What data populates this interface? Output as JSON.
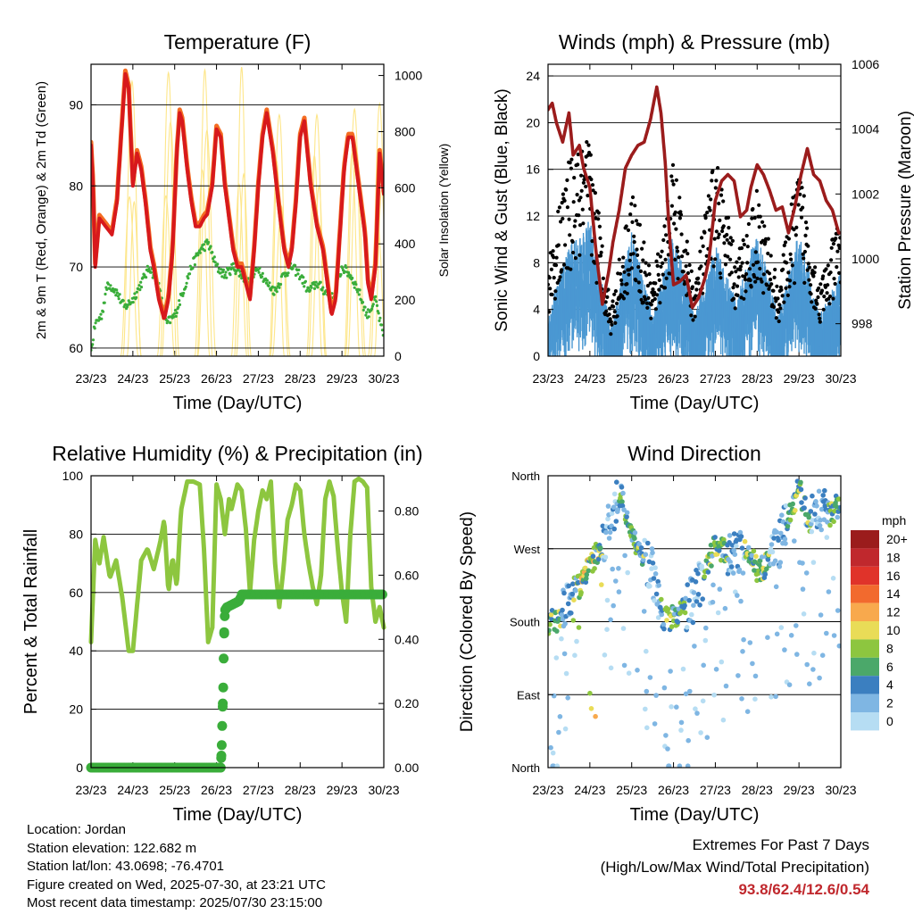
{
  "colors": {
    "temp2m": "#d7191c",
    "temp9m": "#f46d22",
    "dewpoint": "#3aad3a",
    "solar": "#fde68a",
    "wind": "#4a98d2",
    "gust": "#000000",
    "pressure": "#9b1c1c",
    "rh": "#8dc63f",
    "precip": "#3aad3a",
    "extremes": "#c0282d"
  },
  "chart_data": [
    {
      "type": "line",
      "title": "Temperature (F)",
      "xlabel": "Time (Day/UTC)",
      "ylabel": "2m & 9m T (Red, Orange) & 2m Td (Green)",
      "ylabel_right": "Solar Insolation (Yellow)",
      "x_ticks": [
        "23/23",
        "24/23",
        "25/23",
        "26/23",
        "27/23",
        "28/23",
        "29/23",
        "30/23"
      ],
      "y_ticks": [
        "60",
        "70",
        "80",
        "90"
      ],
      "y_ticks_right": [
        "0",
        "200",
        "400",
        "600",
        "800",
        "1000"
      ],
      "ylim": [
        59,
        95
      ],
      "ylim_right": [
        0,
        1040
      ],
      "series": [
        {
          "role": "temperature",
          "x": [
            0,
            0.05,
            0.1,
            0.2,
            0.35,
            0.5,
            0.62,
            0.72,
            0.82,
            0.9,
            1.0,
            1.1,
            1.2,
            1.3,
            1.42,
            1.5,
            1.62,
            1.75,
            1.85,
            1.95,
            2.05,
            2.12,
            2.18,
            2.3,
            2.4,
            2.5,
            2.6,
            2.7,
            2.78,
            2.9,
            3.0,
            3.1,
            3.2,
            3.3,
            3.4,
            3.5,
            3.6,
            3.7,
            3.8,
            3.9,
            4.0,
            4.1,
            4.2,
            4.35,
            4.5,
            4.62,
            4.72,
            4.8,
            4.9,
            5.0,
            5.1,
            5.25,
            5.4,
            5.55,
            5.65,
            5.75,
            5.85,
            5.95,
            6.05,
            6.15,
            6.25,
            6.4,
            6.55,
            6.62,
            6.7,
            6.8,
            6.9,
            7.0
          ],
          "y": [
            85,
            80,
            70,
            76,
            75,
            74,
            78,
            86,
            93.8,
            92,
            80,
            84,
            82,
            78,
            72,
            70,
            66,
            63.5,
            66,
            72,
            84,
            89,
            88,
            82,
            78,
            75,
            75,
            76,
            76.5,
            80,
            87,
            86,
            80,
            76,
            72,
            70,
            70,
            68,
            66,
            72,
            80,
            86,
            89,
            84,
            77,
            72,
            70,
            72,
            78,
            86,
            88,
            80,
            75,
            72,
            68,
            64,
            66,
            74,
            82,
            86,
            86,
            80,
            74,
            68,
            66,
            70,
            84,
            79
          ]
        },
        {
          "role": "dewpoint",
          "x": [
            0,
            0.1,
            0.25,
            0.4,
            0.6,
            0.8,
            1.0,
            1.2,
            1.4,
            1.6,
            1.8,
            2.0,
            2.2,
            2.4,
            2.6,
            2.8,
            3.0,
            3.2,
            3.4,
            3.6,
            3.8,
            4.0,
            4.2,
            4.4,
            4.6,
            4.8,
            5.0,
            5.2,
            5.4,
            5.6,
            5.8,
            6.0,
            6.2,
            6.4,
            6.6,
            6.8,
            7.0
          ],
          "y": [
            59.5,
            63,
            64,
            68,
            67,
            65,
            66,
            68,
            70,
            68,
            63,
            64,
            67,
            70,
            72,
            73,
            70,
            69,
            70,
            69,
            68,
            70,
            68,
            67,
            69,
            70,
            69,
            67,
            68,
            67,
            66,
            70,
            69,
            67,
            64,
            66,
            61
          ]
        },
        {
          "role": "solar_insolation_peaks",
          "x": [
            0.98,
            1.85,
            2.72,
            3.6,
            4.5,
            5.4,
            6.3,
            6.9
          ],
          "y": [
            980,
            1010,
            1020,
            1030,
            860,
            860,
            880,
            900
          ]
        }
      ],
      "legend": "none"
    },
    {
      "type": "scatter",
      "title": "Winds (mph) & Pressure (mb)",
      "xlabel": "Time (Day/UTC)",
      "ylabel": "Sonic Wind & Gust (Blue, Black)",
      "ylabel_right": "Station Pressure (Maroon)",
      "x_ticks": [
        "23/23",
        "24/23",
        "25/23",
        "26/23",
        "27/23",
        "28/23",
        "29/23",
        "30/23"
      ],
      "y_ticks": [
        "0",
        "4",
        "8",
        "12",
        "16",
        "20",
        "24"
      ],
      "y_ticks_right": [
        "998",
        "1000",
        "1002",
        "1004",
        "1006"
      ],
      "ylim": [
        0,
        25
      ],
      "ylim_right": [
        997,
        1006
      ],
      "series": [
        {
          "role": "pressure",
          "x": [
            0,
            0.1,
            0.2,
            0.35,
            0.5,
            0.6,
            0.75,
            0.85,
            1.0,
            1.15,
            1.3,
            1.45,
            1.55,
            1.7,
            1.85,
            2.0,
            2.15,
            2.3,
            2.45,
            2.6,
            2.7,
            2.8,
            2.9,
            3.0,
            3.15,
            3.3,
            3.45,
            3.6,
            3.75,
            3.85,
            4.0,
            4.15,
            4.3,
            4.45,
            4.6,
            4.75,
            4.85,
            5.0,
            5.15,
            5.3,
            5.45,
            5.6,
            5.75,
            5.9,
            6.05,
            6.2,
            6.35,
            6.5,
            6.65,
            6.8,
            6.95,
            7.0
          ],
          "y": [
            1004.6,
            1004.8,
            1004.2,
            1003.6,
            1004.5,
            1003.2,
            1003.5,
            1002.8,
            1002.2,
            1000.2,
            998.6,
            999.6,
            1000.5,
            1001.5,
            1002.8,
            1003.2,
            1003.5,
            1003.6,
            1004.3,
            1005.3,
            1004.5,
            1003.0,
            1000.8,
            999.2,
            999.3,
            999.5,
            998.5,
            998.8,
            999.4,
            1000.0,
            1001.8,
            1002.4,
            1002.6,
            1002.4,
            1001.3,
            1001.5,
            1002.2,
            1002.9,
            1002.6,
            1002.1,
            1001.5,
            1001.6,
            1000.8,
            1001.6,
            1002.6,
            1003.4,
            1002.6,
            1002.4,
            1001.8,
            1001.5,
            1000.8,
            1000.8
          ]
        },
        {
          "role": "wind_envelope",
          "x": [
            0,
            0.5,
            1.0,
            1.5,
            2.0,
            2.5,
            3.0,
            3.5,
            4.0,
            4.5,
            5.0,
            5.5,
            6.0,
            6.5,
            7.0
          ],
          "y": [
            3,
            8,
            10,
            2,
            9,
            3,
            9,
            3,
            8,
            4,
            9,
            3,
            9,
            3,
            6
          ]
        },
        {
          "role": "gust_envelope",
          "x": [
            0,
            0.5,
            1.0,
            1.5,
            2.0,
            2.5,
            3.0,
            3.5,
            4.0,
            4.5,
            5.0,
            5.5,
            6.0,
            6.5,
            7.0
          ],
          "y": [
            8,
            16,
            18,
            4,
            14,
            6,
            16,
            6,
            17,
            8,
            14,
            6,
            16,
            6,
            12
          ]
        }
      ],
      "legend": "none"
    },
    {
      "type": "line",
      "title": "Relative Humidity (%) & Precipitation (in)",
      "xlabel": "Time (Day/UTC)",
      "ylabel": "Percent & Total Rainfall",
      "x_ticks": [
        "23/23",
        "24/23",
        "25/23",
        "26/23",
        "27/23",
        "28/23",
        "29/23",
        "30/23"
      ],
      "y_ticks": [
        "0",
        "20",
        "40",
        "60",
        "80",
        "100"
      ],
      "y_ticks_right": [
        "0.00",
        "0.20",
        "0.40",
        "0.60",
        "0.80"
      ],
      "ylim": [
        0,
        100
      ],
      "ylim_right": [
        0,
        0.91
      ],
      "series": [
        {
          "role": "relative_humidity",
          "x": [
            0,
            0.1,
            0.2,
            0.3,
            0.45,
            0.6,
            0.75,
            0.9,
            1.0,
            1.2,
            1.35,
            1.5,
            1.65,
            1.75,
            1.85,
            1.95,
            2.05,
            2.15,
            2.3,
            2.45,
            2.6,
            2.7,
            2.8,
            2.9,
            3.0,
            3.1,
            3.2,
            3.3,
            3.35,
            3.5,
            3.6,
            3.7,
            3.8,
            3.9,
            4.0,
            4.1,
            4.2,
            4.3,
            4.4,
            4.5,
            4.6,
            4.7,
            4.8,
            4.9,
            5.0,
            5.1,
            5.2,
            5.3,
            5.4,
            5.5,
            5.6,
            5.7,
            5.8,
            5.9,
            6.0,
            6.1,
            6.2,
            6.3,
            6.4,
            6.5,
            6.6,
            6.7,
            6.8,
            6.9,
            7.0
          ],
          "y": [
            43,
            78,
            70,
            79,
            65,
            71,
            58,
            40,
            40,
            71,
            75,
            68,
            77,
            85,
            60,
            72,
            62,
            88,
            98,
            98,
            97,
            75,
            43,
            48,
            97,
            92,
            80,
            92,
            88,
            97,
            95,
            82,
            60,
            78,
            88,
            95,
            92,
            98,
            70,
            55,
            68,
            85,
            90,
            97,
            95,
            80,
            70,
            62,
            56,
            66,
            92,
            98,
            93,
            75,
            60,
            50,
            80,
            98,
            99,
            98,
            96,
            62,
            50,
            55,
            48
          ]
        },
        {
          "role": "total_precipitation",
          "x": [
            0,
            3.1,
            3.12,
            3.14,
            3.16,
            3.18,
            3.2,
            3.25,
            3.4,
            3.55,
            3.6,
            7.0
          ],
          "y": [
            0,
            0,
            0.05,
            0.15,
            0.25,
            0.4,
            0.49,
            0.5,
            0.51,
            0.52,
            0.54,
            0.54
          ]
        }
      ],
      "legend": "none"
    },
    {
      "type": "scatter",
      "title": "Wind Direction",
      "xlabel": "Time (Day/UTC)",
      "ylabel": "Direction (Colored By Speed)",
      "x_ticks": [
        "23/23",
        "24/23",
        "25/23",
        "26/23",
        "27/23",
        "28/23",
        "29/23",
        "30/23"
      ],
      "y_ticks": [
        "North",
        "East",
        "South",
        "West",
        "North"
      ],
      "ylim": [
        0,
        360
      ],
      "colorbar": {
        "unit": "mph",
        "labels": [
          "20+",
          "18",
          "16",
          "14",
          "12",
          "10",
          "8",
          "6",
          "4",
          "2",
          "0"
        ],
        "colors": [
          "#9b1c1c",
          "#c0282d",
          "#e0332a",
          "#f26a2e",
          "#f8a94d",
          "#e9dc57",
          "#8dc63f",
          "#4ba86a",
          "#3b7fc0",
          "#7fb6e3",
          "#b6ddf3"
        ]
      },
      "series": [
        {
          "role": "direction_trend",
          "x": [
            0,
            0.25,
            0.5,
            0.75,
            1.0,
            1.25,
            1.5,
            1.75,
            2.0,
            2.25,
            2.5,
            2.75,
            3.0,
            3.25,
            3.5,
            3.75,
            4.0,
            4.25,
            4.5,
            4.75,
            5.0,
            5.25,
            5.5,
            5.75,
            6.0,
            6.25,
            6.5,
            6.75,
            7.0
          ],
          "y": [
            180,
            182,
            200,
            225,
            250,
            270,
            300,
            340,
            285,
            260,
            240,
            185,
            185,
            195,
            210,
            240,
            275,
            265,
            260,
            270,
            245,
            250,
            270,
            310,
            345,
            300,
            320,
            310,
            330
          ]
        }
      ],
      "legend": "colorbar right"
    }
  ],
  "info": {
    "location": "Location: Jordan",
    "elevation": "Station elevation: 122.682 m",
    "latlon": "Station lat/lon: 43.0698; -76.4701",
    "created": "Figure created on Wed, 2025-07-30, at 23:21 UTC",
    "recent": "Most recent data timestamp: 2025/07/30 23:15:00"
  },
  "extremes": {
    "line1": "Extremes For Past 7 Days",
    "line2": "(High/Low/Max Wind/Total Precipitation)",
    "values": "93.8/62.4/12.6/0.54"
  }
}
